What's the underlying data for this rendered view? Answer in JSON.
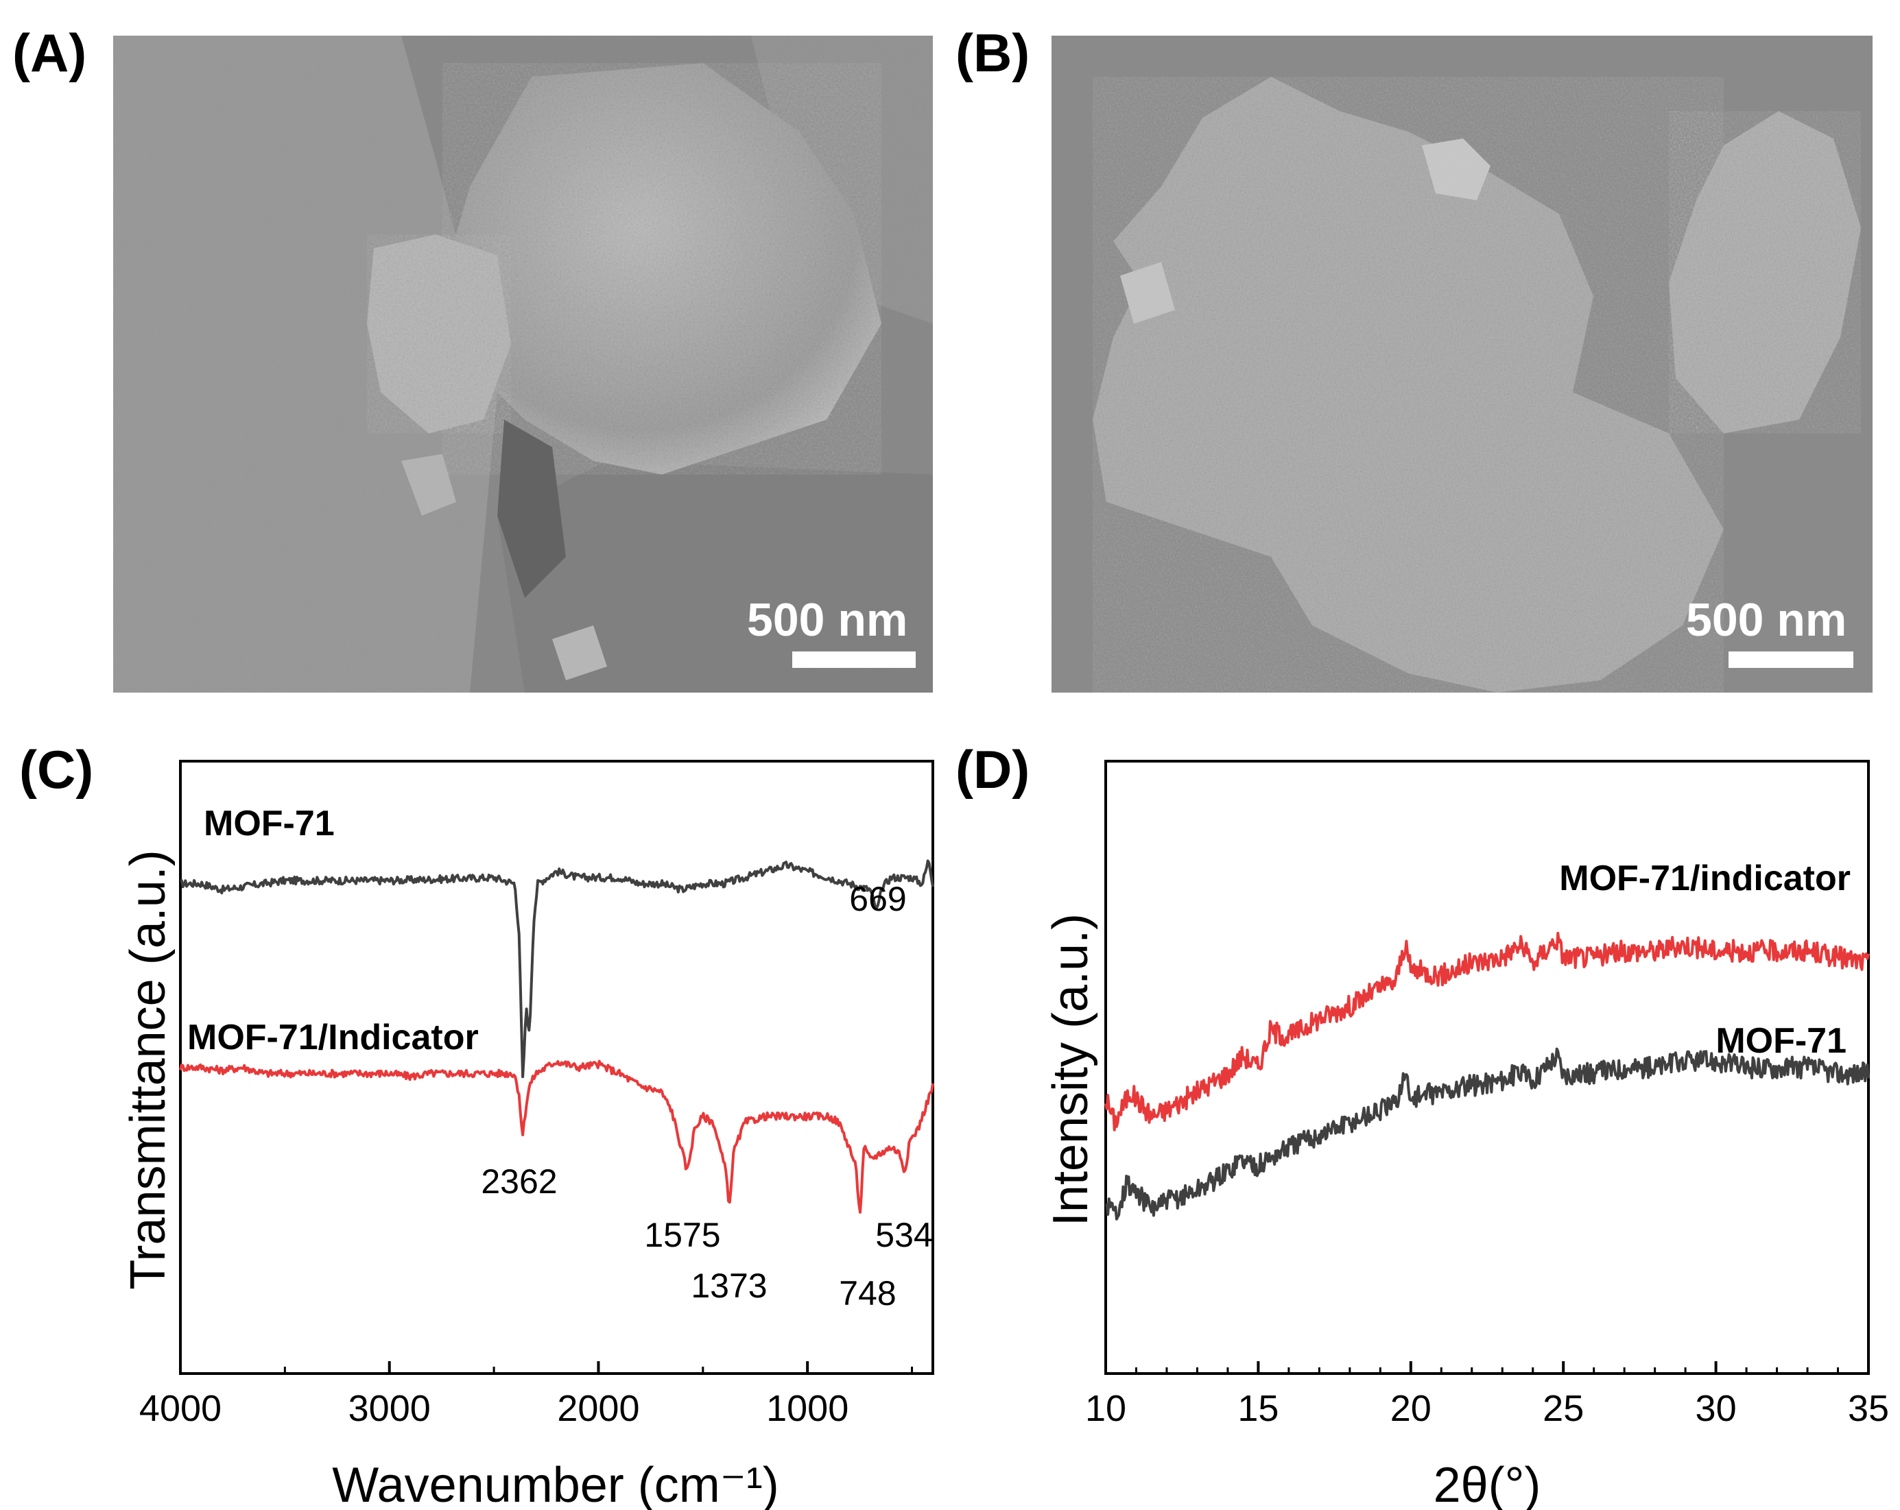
{
  "panels": {
    "a": {
      "label": "(A)",
      "scale_bar": "500 nm"
    },
    "b": {
      "label": "(B)",
      "scale_bar": "500 nm"
    },
    "c": {
      "label": "(C)"
    },
    "d": {
      "label": "(D)"
    }
  },
  "chart_data": [
    {
      "panel": "(C)",
      "type": "line",
      "title": "",
      "xlabel": "Wavenumber (cm⁻¹)",
      "ylabel": "Transmittance (a.u.)",
      "xlim": [
        4000,
        400
      ],
      "x_reversed": true,
      "xticks": [
        4000,
        3000,
        2000,
        1000
      ],
      "y_ticks_shown": false,
      "grid": false,
      "series": [
        {
          "name": "MOF-71",
          "color": "#404040",
          "points": [
            [
              4000,
              0.8
            ],
            [
              3900,
              0.8
            ],
            [
              3800,
              0.79
            ],
            [
              3700,
              0.795
            ],
            [
              3600,
              0.8
            ],
            [
              3500,
              0.805
            ],
            [
              3000,
              0.805
            ],
            [
              2500,
              0.81
            ],
            [
              2400,
              0.8
            ],
            [
              2380,
              0.72
            ],
            [
              2362,
              0.48
            ],
            [
              2345,
              0.6
            ],
            [
              2330,
              0.55
            ],
            [
              2310,
              0.74
            ],
            [
              2290,
              0.8
            ],
            [
              2200,
              0.82
            ],
            [
              2100,
              0.81
            ],
            [
              2000,
              0.81
            ],
            [
              1900,
              0.81
            ],
            [
              1800,
              0.8
            ],
            [
              1700,
              0.8
            ],
            [
              1600,
              0.79
            ],
            [
              1500,
              0.8
            ],
            [
              1400,
              0.8
            ],
            [
              1300,
              0.81
            ],
            [
              1200,
              0.82
            ],
            [
              1100,
              0.83
            ],
            [
              1000,
              0.82
            ],
            [
              900,
              0.81
            ],
            [
              800,
              0.8
            ],
            [
              700,
              0.79
            ],
            [
              669,
              0.755
            ],
            [
              640,
              0.795
            ],
            [
              600,
              0.81
            ],
            [
              500,
              0.81
            ],
            [
              450,
              0.8
            ],
            [
              420,
              0.84
            ],
            [
              400,
              0.8
            ]
          ],
          "labels": [
            "669"
          ],
          "annotations": [
            {
              "x": 669,
              "text": "669"
            }
          ]
        },
        {
          "name": "MOF-71/Indicator",
          "color": "#e8393a",
          "points": [
            [
              4000,
              0.5
            ],
            [
              3900,
              0.5
            ],
            [
              3800,
              0.495
            ],
            [
              3700,
              0.5
            ],
            [
              3600,
              0.49
            ],
            [
              3500,
              0.49
            ],
            [
              3000,
              0.49
            ],
            [
              2900,
              0.485
            ],
            [
              2800,
              0.49
            ],
            [
              2500,
              0.49
            ],
            [
              2400,
              0.49
            ],
            [
              2380,
              0.45
            ],
            [
              2362,
              0.39
            ],
            [
              2345,
              0.44
            ],
            [
              2330,
              0.47
            ],
            [
              2300,
              0.49
            ],
            [
              2200,
              0.51
            ],
            [
              2100,
              0.5
            ],
            [
              2000,
              0.505
            ],
            [
              1900,
              0.49
            ],
            [
              1800,
              0.47
            ],
            [
              1700,
              0.46
            ],
            [
              1650,
              0.43
            ],
            [
              1620,
              0.39
            ],
            [
              1575,
              0.33
            ],
            [
              1540,
              0.4
            ],
            [
              1500,
              0.42
            ],
            [
              1450,
              0.41
            ],
            [
              1420,
              0.37
            ],
            [
              1390,
              0.33
            ],
            [
              1373,
              0.27
            ],
            [
              1355,
              0.36
            ],
            [
              1300,
              0.41
            ],
            [
              1200,
              0.42
            ],
            [
              1100,
              0.42
            ],
            [
              1000,
              0.42
            ],
            [
              900,
              0.42
            ],
            [
              850,
              0.41
            ],
            [
              800,
              0.37
            ],
            [
              770,
              0.34
            ],
            [
              748,
              0.26
            ],
            [
              730,
              0.37
            ],
            [
              700,
              0.35
            ],
            [
              650,
              0.36
            ],
            [
              600,
              0.37
            ],
            [
              560,
              0.36
            ],
            [
              534,
              0.33
            ],
            [
              510,
              0.38
            ],
            [
              470,
              0.4
            ],
            [
              420,
              0.45
            ],
            [
              400,
              0.47
            ]
          ],
          "labels": [
            "2362",
            "1575",
            "1373",
            "748",
            "534"
          ],
          "annotations": [
            {
              "x": 2362,
              "text": "2362"
            },
            {
              "x": 1575,
              "text": "1575"
            },
            {
              "x": 1373,
              "text": "1373"
            },
            {
              "x": 748,
              "text": "748"
            },
            {
              "x": 534,
              "text": "534"
            }
          ]
        }
      ]
    },
    {
      "panel": "(D)",
      "type": "line",
      "title": "",
      "xlabel": "2θ(°)",
      "ylabel": "Intensity (a.u.)",
      "xlim": [
        10,
        35
      ],
      "xticks": [
        10,
        15,
        20,
        25,
        30,
        35
      ],
      "y_ticks_shown": false,
      "grid": false,
      "series": [
        {
          "name": "MOF-71/indicator",
          "color": "#e8393a",
          "points": [
            [
              10,
              0.45
            ],
            [
              10.3,
              0.41
            ],
            [
              10.8,
              0.46
            ],
            [
              11.5,
              0.42
            ],
            [
              12,
              0.43
            ],
            [
              13,
              0.46
            ],
            [
              14,
              0.49
            ],
            [
              14.5,
              0.52
            ],
            [
              15,
              0.5
            ],
            [
              15.4,
              0.56
            ],
            [
              16,
              0.55
            ],
            [
              17,
              0.58
            ],
            [
              18,
              0.6
            ],
            [
              19,
              0.63
            ],
            [
              19.5,
              0.64
            ],
            [
              19.8,
              0.7
            ],
            [
              20,
              0.66
            ],
            [
              21,
              0.65
            ],
            [
              22,
              0.67
            ],
            [
              23,
              0.68
            ],
            [
              23.6,
              0.7
            ],
            [
              24,
              0.67
            ],
            [
              24.8,
              0.71
            ],
            [
              25,
              0.68
            ],
            [
              26,
              0.68
            ],
            [
              27,
              0.69
            ],
            [
              28,
              0.69
            ],
            [
              29,
              0.7
            ],
            [
              30,
              0.69
            ],
            [
              31,
              0.69
            ],
            [
              32,
              0.69
            ],
            [
              33,
              0.69
            ],
            [
              34,
              0.68
            ],
            [
              35,
              0.67
            ]
          ]
        },
        {
          "name": "MOF-71",
          "color": "#404040",
          "points": [
            [
              10,
              0.28
            ],
            [
              10.3,
              0.26
            ],
            [
              10.7,
              0.31
            ],
            [
              11.5,
              0.27
            ],
            [
              12,
              0.28
            ],
            [
              13,
              0.3
            ],
            [
              14,
              0.33
            ],
            [
              14.4,
              0.35
            ],
            [
              15,
              0.34
            ],
            [
              16,
              0.37
            ],
            [
              17,
              0.39
            ],
            [
              18,
              0.41
            ],
            [
              19,
              0.43
            ],
            [
              19.5,
              0.44
            ],
            [
              19.8,
              0.49
            ],
            [
              20,
              0.45
            ],
            [
              21,
              0.46
            ],
            [
              22,
              0.47
            ],
            [
              23,
              0.48
            ],
            [
              23.5,
              0.49
            ],
            [
              24,
              0.48
            ],
            [
              24.8,
              0.52
            ],
            [
              25,
              0.49
            ],
            [
              26,
              0.49
            ],
            [
              27,
              0.5
            ],
            [
              28,
              0.5
            ],
            [
              29,
              0.51
            ],
            [
              30,
              0.51
            ],
            [
              31,
              0.5
            ],
            [
              32,
              0.5
            ],
            [
              33,
              0.5
            ],
            [
              34,
              0.49
            ],
            [
              35,
              0.49
            ]
          ]
        }
      ]
    }
  ]
}
